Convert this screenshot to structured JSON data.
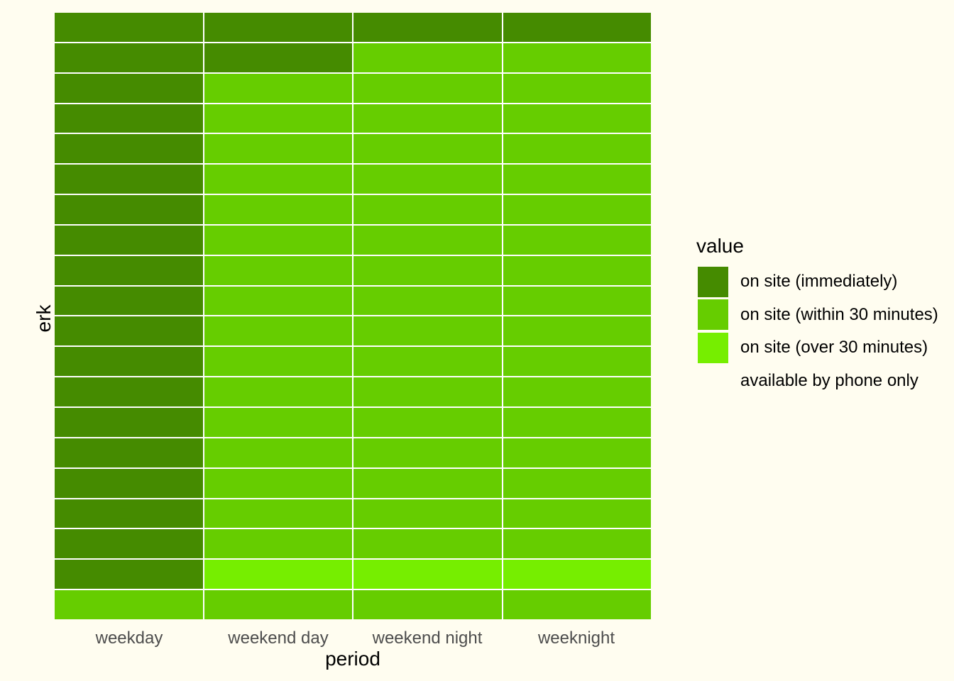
{
  "background_color": "#FFFDF0",
  "panel": {
    "grid_line_color": "#FFFFFF"
  },
  "axes": {
    "x_title": "period",
    "y_title": "erk",
    "x_tick_labels": [
      "weekday",
      "weekend day",
      "weekend night",
      "weeknight"
    ],
    "tick_label_color": "#4D4D4D",
    "title_color": "#000000"
  },
  "legend": {
    "title": "value",
    "position": "right",
    "entries": [
      {
        "label": "on site (immediately)",
        "color": "#458B00"
      },
      {
        "label": "on site (within 30 minutes)",
        "color": "#66CD00"
      },
      {
        "label": "on site (over 30 minutes)",
        "color": "#76EE00"
      },
      {
        "label": "available by phone only",
        "color": "#FFFDF0"
      }
    ]
  },
  "chart_data": {
    "type": "heatmap",
    "title": "",
    "xlabel": "period",
    "ylabel": "erk",
    "categories_x": [
      "weekday",
      "weekend day",
      "weekend night",
      "weeknight"
    ],
    "n_rows": 20,
    "y_tick_labels_visible": false,
    "legend_position": "right",
    "grid_gaps": "white 2px between tiles",
    "value_levels": [
      "on site (immediately)",
      "on site (within 30 minutes)",
      "on site (over 30 minutes)",
      "available by phone only"
    ],
    "level_colors": [
      "#458B00",
      "#66CD00",
      "#76EE00",
      "#FFFDF0"
    ],
    "grid": [
      [
        0,
        0,
        0,
        0
      ],
      [
        0,
        0,
        1,
        1
      ],
      [
        0,
        1,
        1,
        1
      ],
      [
        0,
        1,
        1,
        1
      ],
      [
        0,
        1,
        1,
        1
      ],
      [
        0,
        1,
        1,
        1
      ],
      [
        0,
        1,
        1,
        1
      ],
      [
        0,
        1,
        1,
        1
      ],
      [
        0,
        1,
        1,
        1
      ],
      [
        0,
        1,
        1,
        1
      ],
      [
        0,
        1,
        1,
        1
      ],
      [
        0,
        1,
        1,
        1
      ],
      [
        0,
        1,
        1,
        1
      ],
      [
        0,
        1,
        1,
        1
      ],
      [
        0,
        1,
        1,
        1
      ],
      [
        0,
        1,
        1,
        1
      ],
      [
        0,
        1,
        1,
        1
      ],
      [
        0,
        1,
        1,
        1
      ],
      [
        0,
        2,
        2,
        2
      ],
      [
        1,
        1,
        1,
        1
      ]
    ]
  }
}
